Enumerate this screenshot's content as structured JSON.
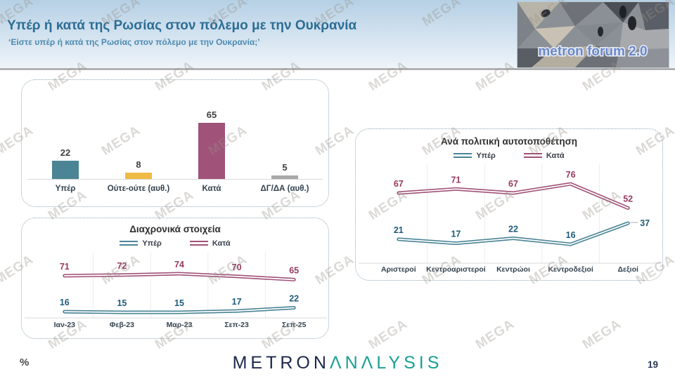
{
  "watermark": {
    "text": "MEGA"
  },
  "header": {
    "title": "Υπέρ ή κατά της Ρωσίας στον πόλεμο με την Ουκρανία",
    "subtitle": "‘Είστε υπέρ ή κατά της Ρωσίας στον πόλεμο με την Ουκρανία;’",
    "logo_text": "metron forum 2.0"
  },
  "footer": {
    "percent_label": "%",
    "brand_metron": "METRON",
    "brand_analysis": "ANALYSIS",
    "page_number": "19"
  },
  "colors": {
    "teal": "#4a8495",
    "maroon": "#a05279",
    "yellow": "#f0bb45",
    "gray": "#a8a8a8",
    "teal_label": "#1f5a78",
    "maroon_label": "#94395f"
  },
  "chart_data": [
    {
      "id": "overall",
      "type": "bar",
      "title": "",
      "categories": [
        "Υπέρ",
        "Ούτε-ούτε (αυθ.)",
        "Κατά",
        "ΔΓ/ΔΑ (αυθ.)"
      ],
      "values": [
        22,
        8,
        65,
        5
      ],
      "bar_colors": [
        "#4a8495",
        "#f0bb45",
        "#a05279",
        "#a8a8a8"
      ],
      "ylim": [
        0,
        100
      ]
    },
    {
      "id": "timeline",
      "type": "line",
      "title": "Διαχρονικά στοιχεία",
      "categories": [
        "Ιαν-23",
        "Φεβ-23",
        "Μαρ-23",
        "Σεπ-23",
        "Σεπ-25"
      ],
      "series": [
        {
          "name": "Υπέρ",
          "color": "#4a8495",
          "label_color": "#1f5a78",
          "values": [
            16,
            15,
            15,
            17,
            22
          ]
        },
        {
          "name": "Κατά",
          "color": "#a05279",
          "label_color": "#94395f",
          "values": [
            71,
            72,
            74,
            70,
            65
          ]
        }
      ],
      "ylim": [
        0,
        100
      ],
      "legend_position": "top"
    },
    {
      "id": "political",
      "type": "line",
      "title": "Ανά πολιτική αυτοτοποθέτηση",
      "categories": [
        "Αριστεροί",
        "Κεντροαριστεροί",
        "Κεντρώοι",
        "Κεντροδεξιοί",
        "Δεξιοί"
      ],
      "series": [
        {
          "name": "Υπέρ",
          "color": "#4a8495",
          "label_color": "#1f5a78",
          "values": [
            21,
            17,
            22,
            16,
            37
          ]
        },
        {
          "name": "Κατά",
          "color": "#a05279",
          "label_color": "#94395f",
          "values": [
            67,
            71,
            67,
            76,
            52
          ]
        }
      ],
      "ylim": [
        0,
        100
      ],
      "legend_position": "top"
    }
  ]
}
